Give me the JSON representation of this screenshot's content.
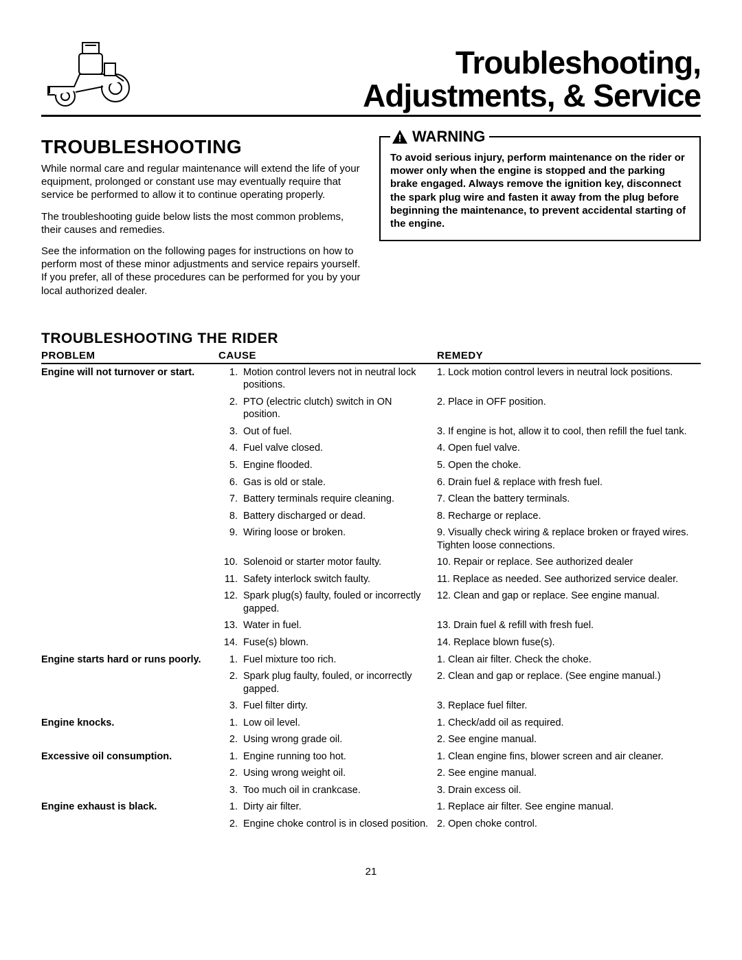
{
  "title_line1": "Troubleshooting,",
  "title_line2": "Adjustments, & Service",
  "section_heading": "TROUBLESHOOTING",
  "intro_p1": "While normal care and regular maintenance will extend the life of your equipment, prolonged or constant use may eventually require that service be performed to allow it to continue operating properly.",
  "intro_p2": "The troubleshooting guide below lists the most common problems, their causes and remedies.",
  "intro_p3": "See the information on the following pages for instructions on how to perform most of these minor adjustments and service repairs yourself. If you prefer, all of these procedures can be performed for you by your local authorized dealer.",
  "warning_label": "WARNING",
  "warning_text": "To avoid serious injury, perform maintenance on the rider or mower only when the engine is stopped and the parking brake engaged. Always remove the ignition key, disconnect the spark plug wire and fasten it away from the plug before beginning the maintenance, to prevent accidental starting of the engine.",
  "table_heading": "TROUBLESHOOTING THE RIDER",
  "columns": {
    "problem": "PROBLEM",
    "cause": "CAUSE",
    "remedy": "REMEDY"
  },
  "rows": [
    {
      "problem": "Engine will not turnover or start.",
      "items": [
        {
          "n": "1.",
          "cause": "Motion control levers not in neutral lock positions.",
          "remedy": "1. Lock motion control levers in neutral lock positions."
        },
        {
          "n": "2.",
          "cause": "PTO (electric clutch) switch in ON position.",
          "remedy": "2. Place in OFF position."
        },
        {
          "n": "3.",
          "cause": "Out of fuel.",
          "remedy": "3. If engine is hot, allow it to cool, then refill the fuel tank."
        },
        {
          "n": "4.",
          "cause": "Fuel valve closed.",
          "remedy": "4. Open fuel valve."
        },
        {
          "n": "5.",
          "cause": "Engine flooded.",
          "remedy": "5. Open the choke."
        },
        {
          "n": "6.",
          "cause": "Gas is old or stale.",
          "remedy": "6. Drain fuel & replace with fresh fuel."
        },
        {
          "n": "7.",
          "cause": "Battery terminals require cleaning.",
          "remedy": "7. Clean the battery terminals."
        },
        {
          "n": "8.",
          "cause": "Battery discharged or dead.",
          "remedy": "8. Recharge or replace."
        },
        {
          "n": "9.",
          "cause": "Wiring loose or broken.",
          "remedy": "9. Visually check wiring & replace broken or frayed wires. Tighten loose connections."
        },
        {
          "n": "10.",
          "cause": "Solenoid or starter motor faulty.",
          "remedy": "10. Repair or replace.  See authorized dealer"
        },
        {
          "n": "11.",
          "cause": "Safety interlock switch faulty.",
          "remedy": "11. Replace as needed. See authorized service dealer."
        },
        {
          "n": "12.",
          "cause": "Spark plug(s) faulty, fouled or incorrectly gapped.",
          "remedy": "12. Clean and gap or replace. See engine manual."
        },
        {
          "n": "13.",
          "cause": "Water in fuel.",
          "remedy": "13. Drain fuel & refill with fresh fuel."
        },
        {
          "n": "14.",
          "cause": "Fuse(s) blown.",
          "remedy": "14. Replace blown fuse(s)."
        }
      ]
    },
    {
      "problem": "Engine starts hard or runs poorly.",
      "items": [
        {
          "n": "1.",
          "cause": "Fuel mixture too rich.",
          "remedy": "1. Clean air filter. Check the choke."
        },
        {
          "n": "2.",
          "cause": "Spark plug faulty, fouled, or incorrectly gapped.",
          "remedy": "2. Clean and gap or replace. (See engine manual.)"
        },
        {
          "n": "3.",
          "cause": "Fuel filter dirty.",
          "remedy": "3. Replace fuel filter."
        }
      ]
    },
    {
      "problem": "Engine knocks.",
      "items": [
        {
          "n": "1.",
          "cause": "Low oil level.",
          "remedy": "1. Check/add oil as required."
        },
        {
          "n": "2.",
          "cause": "Using wrong grade oil.",
          "remedy": "2. See engine manual."
        }
      ]
    },
    {
      "problem": "Excessive oil consumption.",
      "items": [
        {
          "n": "1.",
          "cause": "Engine running too hot.",
          "remedy": "1. Clean engine fins, blower screen and air cleaner."
        },
        {
          "n": "2.",
          "cause": "Using wrong weight oil.",
          "remedy": "2. See engine manual."
        },
        {
          "n": "3.",
          "cause": "Too much oil in crankcase.",
          "remedy": "3. Drain excess oil."
        }
      ]
    },
    {
      "problem": "Engine exhaust is black.",
      "items": [
        {
          "n": "1.",
          "cause": "Dirty air filter.",
          "remedy": "1. Replace air filter. See engine manual."
        },
        {
          "n": "2.",
          "cause": "Engine choke control is in closed position.",
          "remedy": "2. Open choke control."
        }
      ]
    }
  ],
  "page_number": "21"
}
